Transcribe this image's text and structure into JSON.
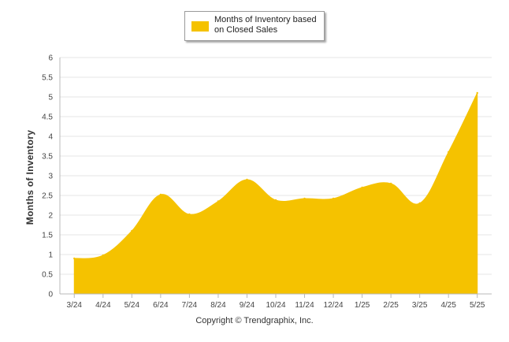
{
  "chart_data": {
    "type": "area",
    "ylabel": "Months of Inventory",
    "ylim": [
      0,
      6
    ],
    "yticks": [
      "0",
      "0.5",
      "1",
      "1.5",
      "2",
      "2.5",
      "3",
      "3.5",
      "4",
      "4.5",
      "5",
      "5.5",
      "6"
    ],
    "categories": [
      "3/24",
      "4/24",
      "5/24",
      "6/24",
      "7/24",
      "8/24",
      "9/24",
      "10/24",
      "11/24",
      "12/24",
      "1/25",
      "2/25",
      "3/25",
      "4/25",
      "5/25"
    ],
    "series": [
      {
        "name": "Months of Inventory based on Closed Sales",
        "color": "#f5c200",
        "values": [
          0.9,
          0.98,
          1.6,
          2.52,
          2.02,
          2.35,
          2.9,
          2.38,
          2.42,
          2.42,
          2.7,
          2.8,
          2.3,
          3.6,
          5.1
        ]
      }
    ],
    "grid": true,
    "legend": "top-center"
  },
  "legend": {
    "label": "Months of Inventory based on Closed Sales"
  },
  "footer": "Copyright © Trendgraphix, Inc."
}
